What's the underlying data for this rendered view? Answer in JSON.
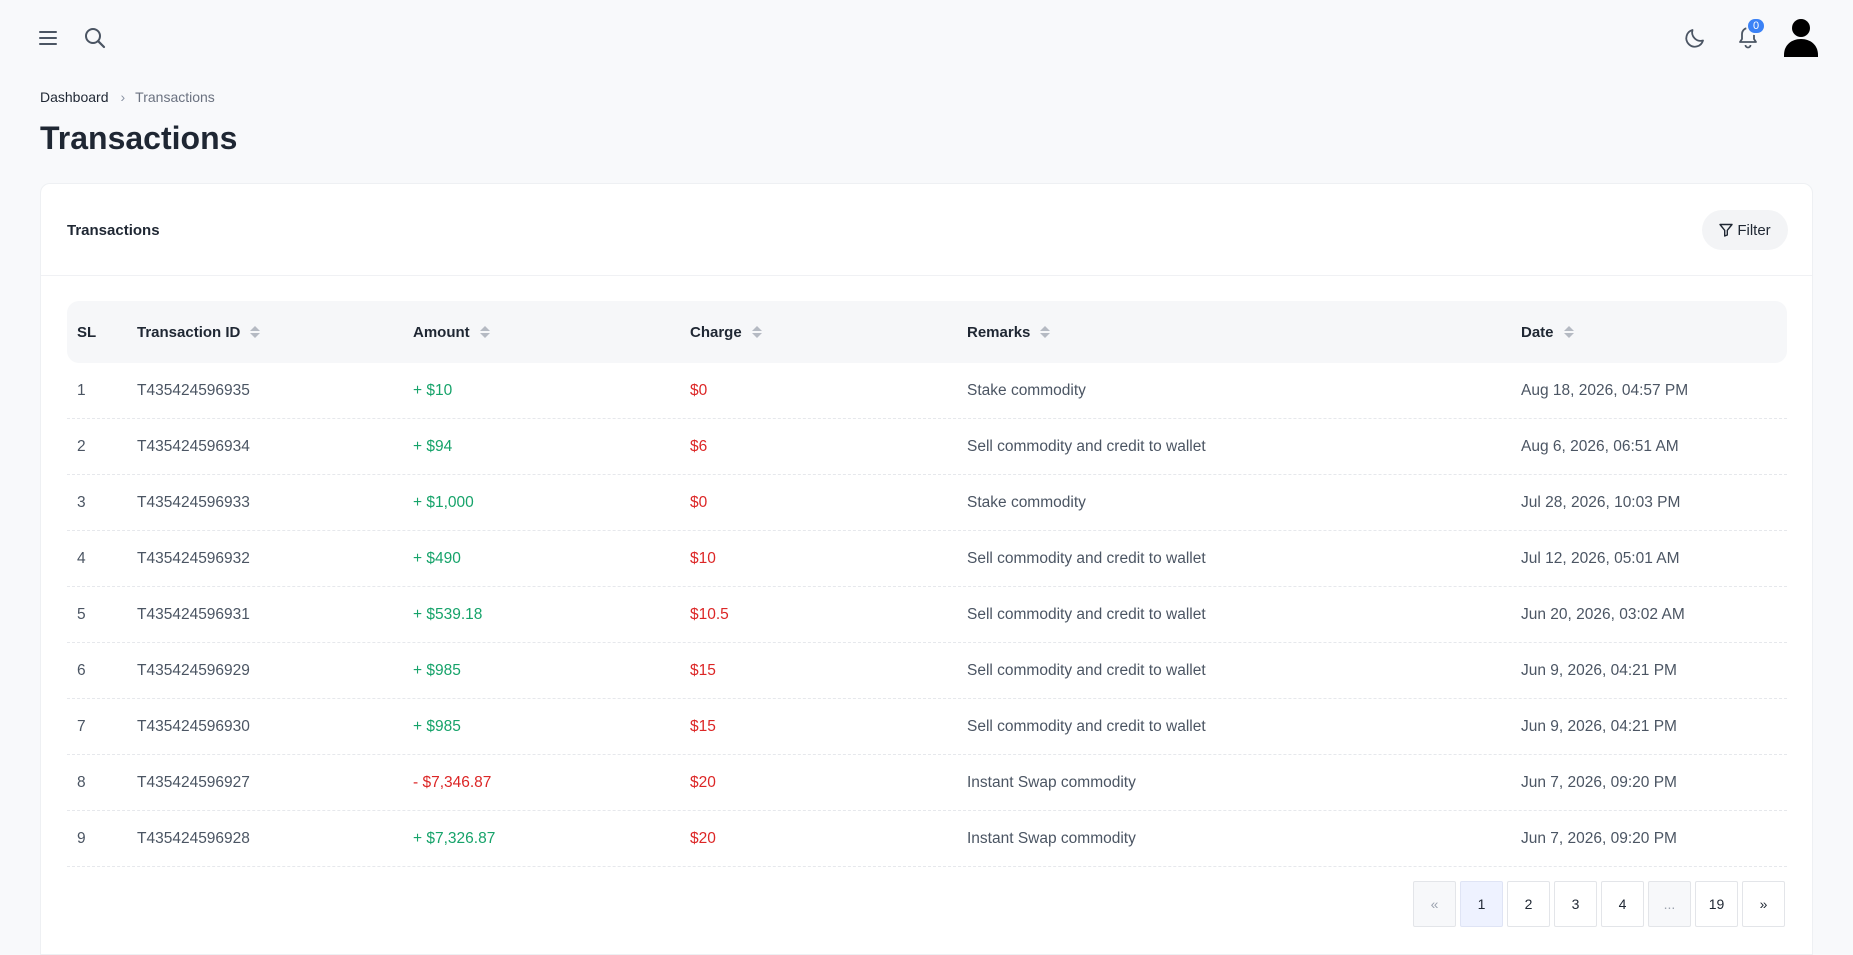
{
  "topbar": {
    "notification_count": "0"
  },
  "breadcrumb": {
    "home": "Dashboard",
    "current": "Transactions"
  },
  "page_title": "Transactions",
  "card": {
    "title": "Transactions",
    "filter_label": "Filter"
  },
  "table": {
    "headers": {
      "sl": "SL",
      "id": "Transaction ID",
      "amount": "Amount",
      "charge": "Charge",
      "remarks": "Remarks",
      "date": "Date"
    },
    "rows": [
      {
        "sl": "1",
        "id": "T435424596935",
        "amount": "+ $10",
        "charge": "$0",
        "remarks": "Stake commodity",
        "date": "Aug 18, 2026, 04:57 PM"
      },
      {
        "sl": "2",
        "id": "T435424596934",
        "amount": "+ $94",
        "charge": "$6",
        "remarks": "Sell commodity and credit to wallet",
        "date": "Aug 6, 2026, 06:51 AM"
      },
      {
        "sl": "3",
        "id": "T435424596933",
        "amount": "+ $1,000",
        "charge": "$0",
        "remarks": "Stake commodity",
        "date": "Jul 28, 2026, 10:03 PM"
      },
      {
        "sl": "4",
        "id": "T435424596932",
        "amount": "+ $490",
        "charge": "$10",
        "remarks": "Sell commodity and credit to wallet",
        "date": "Jul 12, 2026, 05:01 AM"
      },
      {
        "sl": "5",
        "id": "T435424596931",
        "amount": "+ $539.18",
        "charge": "$10.5",
        "remarks": "Sell commodity and credit to wallet",
        "date": "Jun 20, 2026, 03:02 AM"
      },
      {
        "sl": "6",
        "id": "T435424596929",
        "amount": "+ $985",
        "charge": "$15",
        "remarks": "Sell commodity and credit to wallet",
        "date": "Jun 9, 2026, 04:21 PM"
      },
      {
        "sl": "7",
        "id": "T435424596930",
        "amount": "+ $985",
        "charge": "$15",
        "remarks": "Sell commodity and credit to wallet",
        "date": "Jun 9, 2026, 04:21 PM"
      },
      {
        "sl": "8",
        "id": "T435424596927",
        "amount": "- $7,346.87",
        "charge": "$20",
        "remarks": "Instant Swap commodity",
        "date": "Jun 7, 2026, 09:20 PM"
      },
      {
        "sl": "9",
        "id": "T435424596928",
        "amount": "+ $7,326.87",
        "charge": "$20",
        "remarks": "Instant Swap commodity",
        "date": "Jun 7, 2026, 09:20 PM"
      }
    ]
  },
  "pagination": {
    "prev": "«",
    "pages": [
      "1",
      "2",
      "3",
      "4"
    ],
    "ellipsis": "...",
    "last": "19",
    "next": "»",
    "current": "1"
  },
  "colors": {
    "positive": "#16a36a",
    "negative": "#dc2626",
    "badge": "#3b82f6"
  }
}
